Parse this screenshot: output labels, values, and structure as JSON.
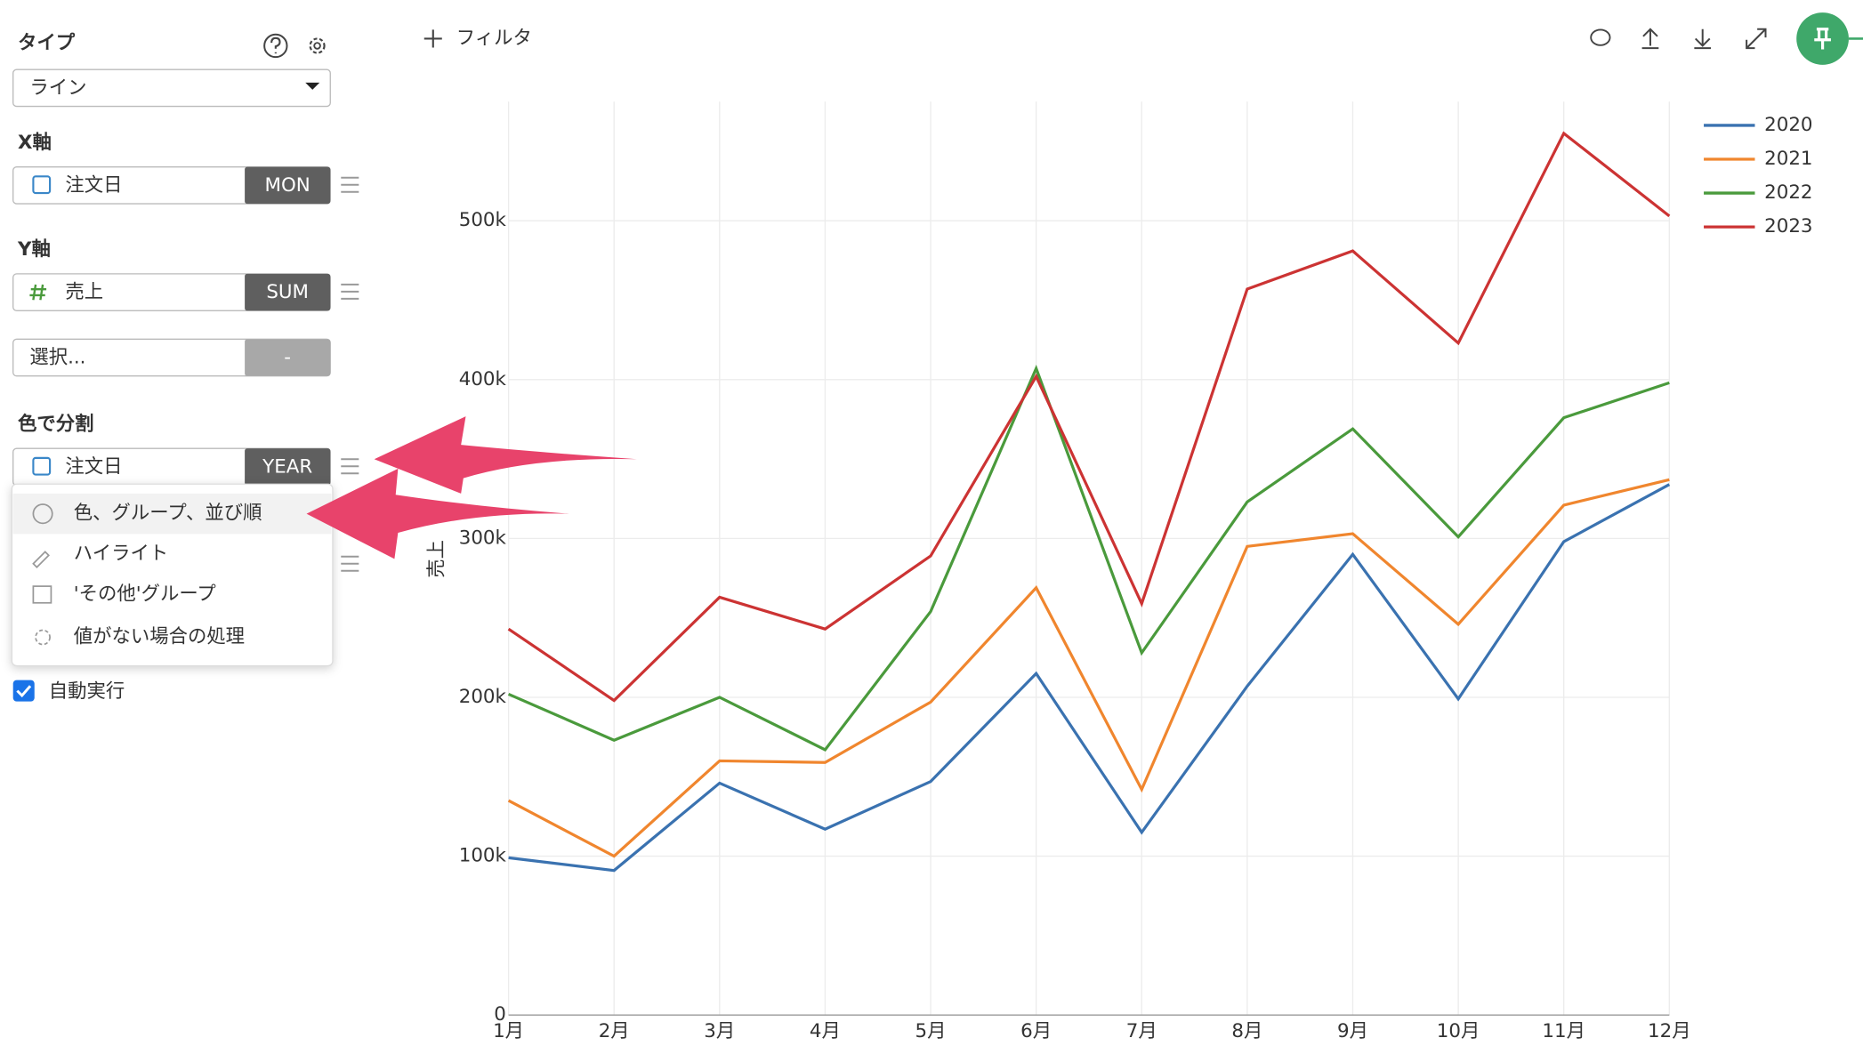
{
  "sidebar": {
    "type_label": "タイプ",
    "type_value": "ライン",
    "x_label": "X軸",
    "x_field": "注文日",
    "x_agg": "MON",
    "y_label": "Y軸",
    "y_field": "売上",
    "y_agg": "SUM",
    "extra_placeholder": "選択...",
    "extra_agg": "-",
    "color_label": "色で分割",
    "color_field": "注文日",
    "color_agg": "YEAR",
    "menu": [
      "色、グループ、並び順",
      "ハイライト",
      "'その他'グループ",
      "値がない場合の処理"
    ],
    "auto_run": "自動実行"
  },
  "toolbar": {
    "filter": "フィルタ"
  },
  "chart_data": {
    "type": "line",
    "y_label": "売上",
    "categories": [
      "1月",
      "2月",
      "3月",
      "4月",
      "5月",
      "6月",
      "7月",
      "8月",
      "9月",
      "10月",
      "11月",
      "12月"
    ],
    "series": [
      {
        "name": "2020",
        "color": "#3a72b0",
        "values": [
          99000,
          91000,
          146000,
          117000,
          147000,
          215000,
          115000,
          207000,
          290000,
          199000,
          298000,
          334000
        ]
      },
      {
        "name": "2021",
        "color": "#f0862e",
        "values": [
          135000,
          100000,
          160000,
          159000,
          197000,
          269000,
          142000,
          295000,
          303000,
          246000,
          321000,
          337000
        ]
      },
      {
        "name": "2022",
        "color": "#4a9a3c",
        "values": [
          202000,
          173000,
          200000,
          167000,
          254000,
          407000,
          228000,
          323000,
          369000,
          301000,
          376000,
          398000
        ]
      },
      {
        "name": "2023",
        "color": "#cc3333",
        "values": [
          243000,
          198000,
          263000,
          243000,
          289000,
          402000,
          259000,
          457000,
          481000,
          423000,
          555000,
          503000
        ]
      }
    ],
    "ylim": [
      0,
      575000
    ],
    "yticks": [
      0,
      {
        "value": 100000,
        "label": "100k"
      },
      {
        "value": 200000,
        "label": "200k"
      },
      {
        "value": 300000,
        "label": "300k"
      },
      {
        "value": 400000,
        "label": "400k"
      },
      {
        "value": 500000,
        "label": "500k"
      }
    ],
    "grid": true,
    "legend": "top-right"
  }
}
